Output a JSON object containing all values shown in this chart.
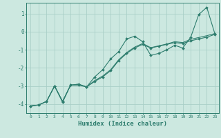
{
  "xlabel": "Humidex (Indice chaleur)",
  "background_color": "#cce8e0",
  "grid_color": "#aacfc8",
  "line_color": "#2e7d6e",
  "x_values": [
    0,
    1,
    2,
    3,
    4,
    5,
    6,
    7,
    8,
    9,
    10,
    11,
    12,
    13,
    14,
    15,
    16,
    17,
    18,
    19,
    20,
    21,
    22,
    23
  ],
  "series1": [
    -4.1,
    -4.05,
    -3.85,
    -3.0,
    -3.9,
    -2.95,
    -2.9,
    -3.05,
    -2.5,
    -2.1,
    -1.5,
    -1.1,
    -0.4,
    -0.25,
    -0.55,
    -1.3,
    -1.2,
    -1.0,
    -0.75,
    -0.9,
    -0.3,
    0.95,
    1.35,
    -0.1
  ],
  "series2": [
    -4.1,
    -4.05,
    -3.85,
    -3.0,
    -3.85,
    -2.95,
    -2.95,
    -3.05,
    -2.75,
    -2.5,
    -2.15,
    -1.6,
    -1.2,
    -0.9,
    -0.7,
    -0.9,
    -0.8,
    -0.7,
    -0.6,
    -0.65,
    -0.5,
    -0.4,
    -0.3,
    -0.15
  ],
  "series3": [
    -4.1,
    -4.05,
    -3.85,
    -3.0,
    -3.85,
    -2.95,
    -2.9,
    -3.05,
    -2.7,
    -2.45,
    -2.1,
    -1.55,
    -1.15,
    -0.85,
    -0.65,
    -0.88,
    -0.78,
    -0.68,
    -0.55,
    -0.6,
    -0.42,
    -0.32,
    -0.22,
    -0.1
  ],
  "ylim": [
    -4.5,
    1.6
  ],
  "xlim": [
    -0.5,
    23.5
  ],
  "yticks": [
    -4,
    -3,
    -2,
    -1,
    0,
    1
  ],
  "xticks": [
    0,
    1,
    2,
    3,
    4,
    5,
    6,
    7,
    8,
    9,
    10,
    11,
    12,
    13,
    14,
    15,
    16,
    17,
    18,
    19,
    20,
    21,
    22,
    23
  ]
}
